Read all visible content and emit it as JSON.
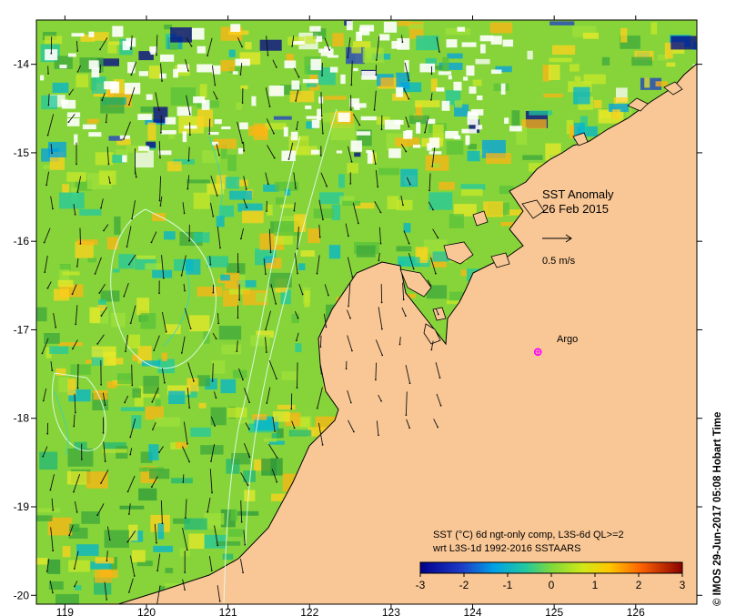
{
  "map": {
    "title_line1": "SST Anomaly",
    "title_line2": "26 Feb 2015",
    "arrow_scale_label": "0.5 m/s",
    "argo_label": "Argo",
    "x_ticks": [
      "119",
      "120",
      "121",
      "122",
      "123",
      "124",
      "125",
      "126"
    ],
    "y_ticks": [
      "-14",
      "-15",
      "-16",
      "-17",
      "-18",
      "-19",
      "-20"
    ],
    "lon_range": [
      118.65,
      126.75
    ],
    "lat_range": [
      -20.1,
      -13.5
    ],
    "argo_float": {
      "lon": 124.8,
      "lat": -17.25
    }
  },
  "colorbar": {
    "caption_line1": "SST (°C) 6d ngt-only comp, L3S-6d QL>=2",
    "caption_line2": "wrt L3S-1d 1992-2016 SSTAARS",
    "ticks": [
      "-3",
      "-2",
      "-1",
      "0",
      "1",
      "2",
      "3"
    ],
    "range": [
      -3,
      3
    ]
  },
  "credit": {
    "text": "© IMOS 29-Jun-2017 05:08 Hobart Time"
  },
  "colors": {
    "land": "#f9c796",
    "cold": "#00008b",
    "neutral": "#7fd83a",
    "warm": "#8b0000",
    "argo": "#ff00ff"
  }
}
